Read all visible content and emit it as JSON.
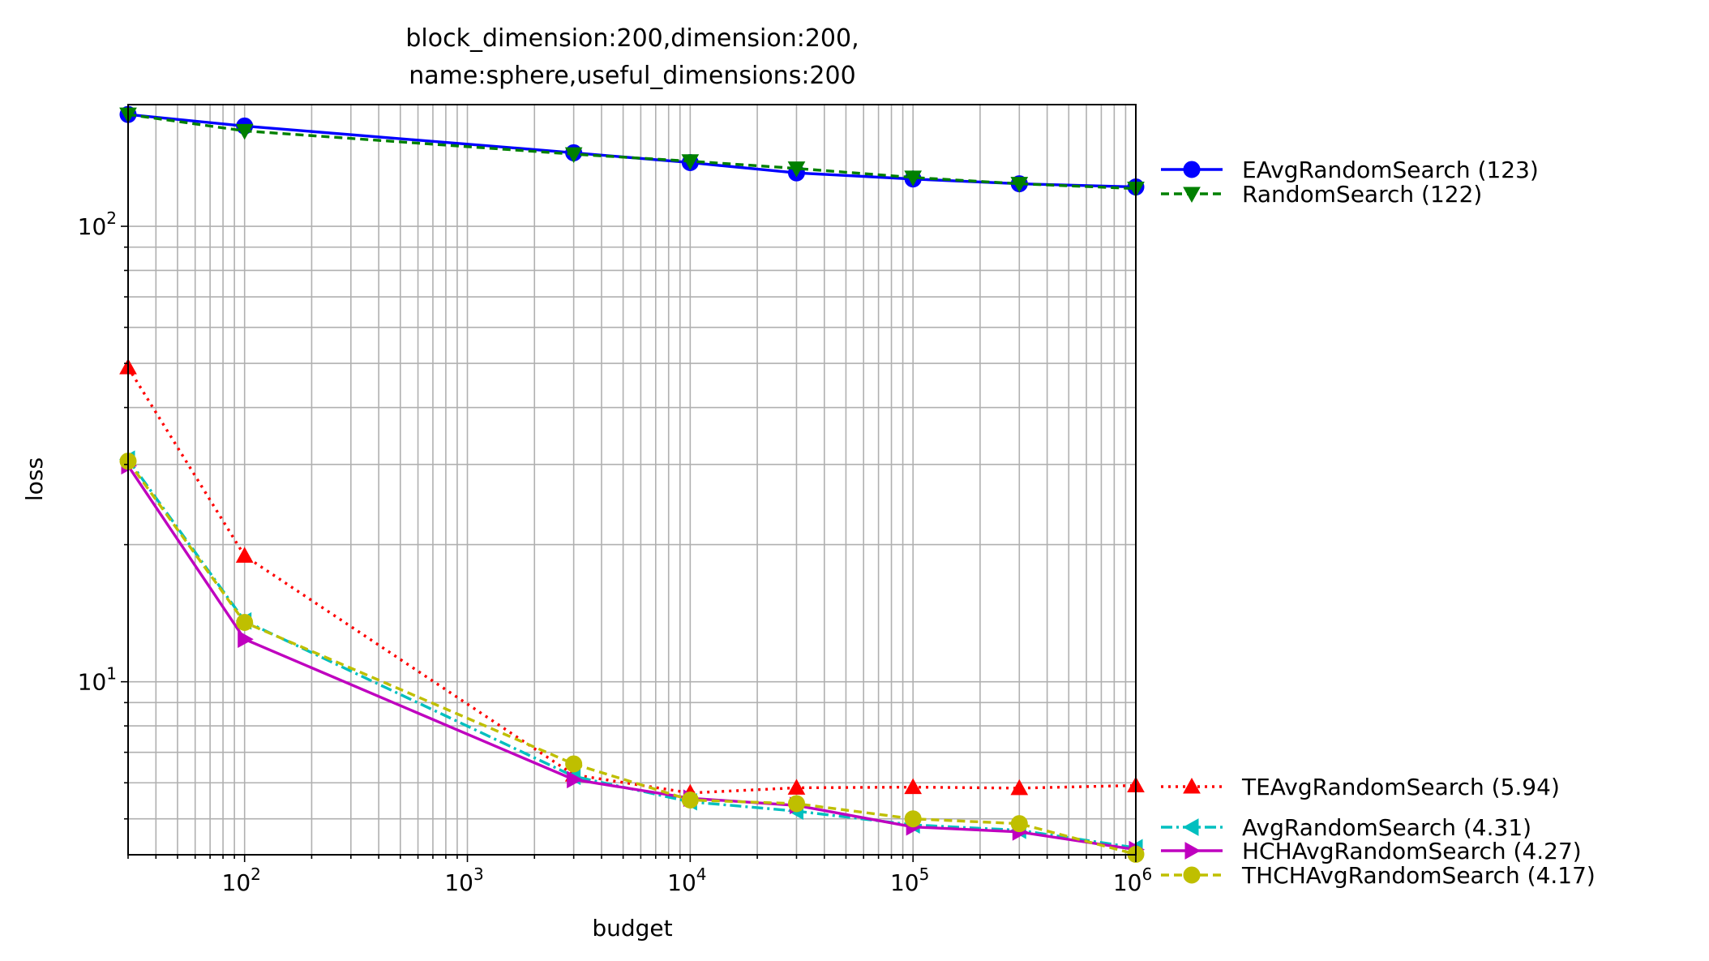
{
  "chart_data": {
    "type": "line",
    "title_lines": [
      "block_dimension:200,dimension:200,",
      "name:sphere,useful_dimensions:200"
    ],
    "xlabel": "budget",
    "ylabel": "loss",
    "xscale": "log",
    "yscale": "log",
    "xlim": [
      30,
      1000000
    ],
    "ylim": [
      4.17,
      185
    ],
    "grid": true,
    "legend_position": "outside-right",
    "x_ticks": [
      {
        "value": 100,
        "base": "10",
        "exp": "2"
      },
      {
        "value": 1000,
        "base": "10",
        "exp": "3"
      },
      {
        "value": 10000,
        "base": "10",
        "exp": "4"
      },
      {
        "value": 100000,
        "base": "10",
        "exp": "5"
      },
      {
        "value": 1000000,
        "base": "10",
        "exp": "6"
      }
    ],
    "y_ticks": [
      {
        "value": 10,
        "base": "10",
        "exp": "1"
      },
      {
        "value": 100,
        "base": "10",
        "exp": "2"
      }
    ],
    "x": [
      30,
      100,
      3000,
      10000,
      30000,
      100000,
      300000,
      1000000
    ],
    "series": [
      {
        "name": "EAvgRandomSearch (123)",
        "color": "#0000ff",
        "dash": "",
        "marker": "circle",
        "values": [
          176,
          166,
          145,
          138,
          131,
          127,
          124,
          122
        ]
      },
      {
        "name": "RandomSearch (122)",
        "color": "#008000",
        "dash": "10,6",
        "marker": "triangle-down",
        "values": [
          176,
          162,
          144,
          139,
          134,
          128,
          124,
          121
        ]
      },
      {
        "name": "TEAvgRandomSearch (5.94)",
        "color": "#ff0000",
        "dash": "3,6",
        "marker": "triangle-up",
        "values": [
          49,
          18.9,
          6.25,
          5.7,
          5.85,
          5.87,
          5.84,
          5.92
        ]
      },
      {
        "name": "AvgRandomSearch (4.31)",
        "color": "#00bfbf",
        "dash": "14,5,3,5",
        "marker": "triangle-left",
        "values": [
          30.8,
          13.6,
          6.2,
          5.45,
          5.2,
          4.85,
          4.72,
          4.32
        ]
      },
      {
        "name": "HCHAvgRandomSearch (4.27)",
        "color": "#bf00bf",
        "dash": "",
        "marker": "triangle-right",
        "values": [
          29.8,
          12.4,
          6.1,
          5.55,
          5.35,
          4.8,
          4.68,
          4.28
        ]
      },
      {
        "name": "THCHAvgRandomSearch (4.17)",
        "color": "#bfbf00",
        "dash": "10,6",
        "marker": "circle",
        "values": [
          30.5,
          13.5,
          6.6,
          5.5,
          5.4,
          5.0,
          4.88,
          4.18
        ]
      }
    ]
  }
}
